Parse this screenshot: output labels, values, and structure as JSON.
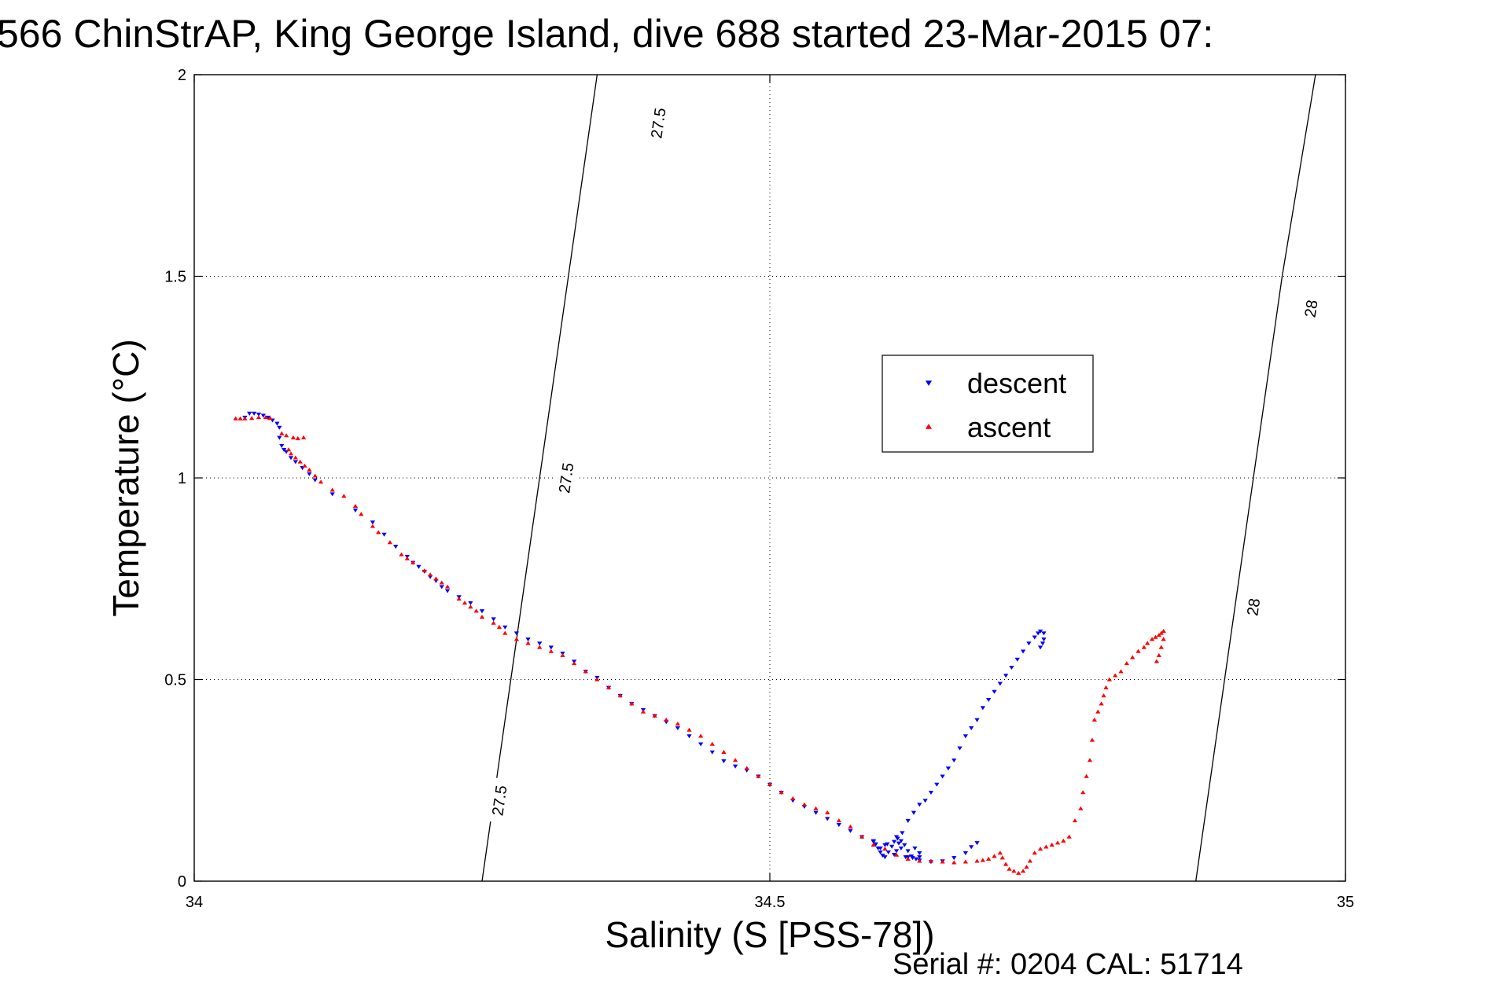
{
  "chart_data": {
    "type": "scatter",
    "title": "566 ChinStrAP, King George Island, dive 688 started 23-Mar-2015 07:",
    "xlabel": "Salinity (S [PSS-78])",
    "ylabel": "Temperature (°C)",
    "xlim": [
      34,
      35
    ],
    "ylim": [
      0,
      2
    ],
    "xticks": [
      34,
      34.5,
      35
    ],
    "xtick_labels": [
      "34",
      "34.5",
      "35"
    ],
    "yticks": [
      0,
      0.5,
      1,
      1.5,
      2
    ],
    "ytick_labels": [
      "0",
      "0.5",
      "1",
      "1.5",
      "2"
    ],
    "grid": true,
    "legend_position": "upper-right-inner",
    "footnote": "Serial #: 0204  CAL: 51714",
    "series": [
      {
        "name": "descent",
        "color": "#0000ff",
        "marker": "triangle-down",
        "points": [
          [
            34.044,
            1.15
          ],
          [
            34.048,
            1.16
          ],
          [
            34.052,
            1.16
          ],
          [
            34.056,
            1.158
          ],
          [
            34.06,
            1.155
          ],
          [
            34.064,
            1.15
          ],
          [
            34.068,
            1.143
          ],
          [
            34.072,
            1.135
          ],
          [
            34.074,
            1.125
          ],
          [
            34.074,
            1.1
          ],
          [
            34.076,
            1.08
          ],
          [
            34.078,
            1.07
          ],
          [
            34.08,
            1.065
          ],
          [
            34.084,
            1.05
          ],
          [
            34.088,
            1.04
          ],
          [
            34.094,
            1.025
          ],
          [
            34.1,
            1.01
          ],
          [
            34.105,
            0.995
          ],
          [
            34.12,
            0.96
          ],
          [
            34.14,
            0.92
          ],
          [
            34.155,
            0.89
          ],
          [
            34.165,
            0.86
          ],
          [
            34.175,
            0.83
          ],
          [
            34.185,
            0.805
          ],
          [
            34.19,
            0.79
          ],
          [
            34.195,
            0.78
          ],
          [
            34.2,
            0.768
          ],
          [
            34.205,
            0.755
          ],
          [
            34.21,
            0.745
          ],
          [
            34.215,
            0.73
          ],
          [
            34.22,
            0.72
          ],
          [
            34.23,
            0.705
          ],
          [
            34.24,
            0.69
          ],
          [
            34.25,
            0.67
          ],
          [
            34.26,
            0.65
          ],
          [
            34.27,
            0.63
          ],
          [
            34.28,
            0.615
          ],
          [
            34.29,
            0.6
          ],
          [
            34.3,
            0.59
          ],
          [
            34.31,
            0.58
          ],
          [
            34.32,
            0.565
          ],
          [
            34.33,
            0.545
          ],
          [
            34.34,
            0.52
          ],
          [
            34.35,
            0.505
          ],
          [
            34.36,
            0.48
          ],
          [
            34.37,
            0.46
          ],
          [
            34.38,
            0.44
          ],
          [
            34.39,
            0.425
          ],
          [
            34.4,
            0.41
          ],
          [
            34.41,
            0.395
          ],
          [
            34.42,
            0.38
          ],
          [
            34.43,
            0.36
          ],
          [
            34.44,
            0.34
          ],
          [
            34.45,
            0.32
          ],
          [
            34.46,
            0.298
          ],
          [
            34.47,
            0.285
          ],
          [
            34.48,
            0.275
          ],
          [
            34.49,
            0.26
          ],
          [
            34.5,
            0.24
          ],
          [
            34.51,
            0.22
          ],
          [
            34.52,
            0.2
          ],
          [
            34.53,
            0.185
          ],
          [
            34.54,
            0.17
          ],
          [
            34.55,
            0.155
          ],
          [
            34.56,
            0.14
          ],
          [
            34.57,
            0.125
          ],
          [
            34.58,
            0.11
          ],
          [
            34.59,
            0.1
          ],
          [
            34.6,
            0.09
          ],
          [
            34.61,
            0.075
          ],
          [
            34.62,
            0.06
          ],
          [
            34.63,
            0.052
          ],
          [
            34.64,
            0.048
          ],
          [
            34.65,
            0.05
          ],
          [
            34.66,
            0.058
          ],
          [
            34.67,
            0.07
          ],
          [
            34.675,
            0.085
          ],
          [
            34.68,
            0.095
          ],
          [
            34.59,
            0.098
          ],
          [
            34.592,
            0.092
          ],
          [
            34.594,
            0.082
          ],
          [
            34.596,
            0.072
          ],
          [
            34.598,
            0.064
          ],
          [
            34.6,
            0.06
          ],
          [
            34.603,
            0.072
          ],
          [
            34.606,
            0.086
          ],
          [
            34.608,
            0.098
          ],
          [
            34.611,
            0.106
          ],
          [
            34.614,
            0.1
          ],
          [
            34.617,
            0.09
          ],
          [
            34.62,
            0.075
          ],
          [
            34.623,
            0.062
          ],
          [
            34.627,
            0.055
          ],
          [
            34.63,
            0.07
          ],
          [
            34.612,
            0.094
          ],
          [
            34.602,
            0.092
          ],
          [
            34.596,
            0.082
          ],
          [
            34.614,
            0.082
          ],
          [
            34.618,
            0.06
          ],
          [
            34.624,
            0.058
          ],
          [
            34.608,
            0.066
          ],
          [
            34.63,
            0.06
          ],
          [
            34.626,
            0.082
          ],
          [
            34.61,
            0.11
          ],
          [
            34.615,
            0.12
          ],
          [
            34.62,
            0.15
          ],
          [
            34.625,
            0.17
          ],
          [
            34.63,
            0.19
          ],
          [
            34.635,
            0.2
          ],
          [
            34.64,
            0.22
          ],
          [
            34.645,
            0.24
          ],
          [
            34.65,
            0.26
          ],
          [
            34.655,
            0.28
          ],
          [
            34.66,
            0.3
          ],
          [
            34.665,
            0.33
          ],
          [
            34.67,
            0.36
          ],
          [
            34.675,
            0.38
          ],
          [
            34.68,
            0.4
          ],
          [
            34.685,
            0.43
          ],
          [
            34.69,
            0.45
          ],
          [
            34.695,
            0.47
          ],
          [
            34.7,
            0.49
          ],
          [
            34.705,
            0.51
          ],
          [
            34.71,
            0.53
          ],
          [
            34.715,
            0.55
          ],
          [
            34.72,
            0.57
          ],
          [
            34.725,
            0.59
          ],
          [
            34.73,
            0.605
          ],
          [
            34.733,
            0.615
          ],
          [
            34.735,
            0.62
          ],
          [
            34.738,
            0.615
          ],
          [
            34.738,
            0.6
          ],
          [
            34.737,
            0.59
          ],
          [
            34.735,
            0.58
          ]
        ]
      },
      {
        "name": "ascent",
        "color": "#ff0000",
        "marker": "triangle-up",
        "points": [
          [
            34.036,
            1.147
          ],
          [
            34.04,
            1.147
          ],
          [
            34.044,
            1.147
          ],
          [
            34.05,
            1.148
          ],
          [
            34.056,
            1.15
          ],
          [
            34.062,
            1.15
          ],
          [
            34.066,
            1.148
          ],
          [
            34.076,
            1.11
          ],
          [
            34.08,
            1.105
          ],
          [
            34.086,
            1.1
          ],
          [
            34.09,
            1.098
          ],
          [
            34.095,
            1.1
          ],
          [
            34.082,
            1.07
          ],
          [
            34.084,
            1.06
          ],
          [
            34.088,
            1.05
          ],
          [
            34.092,
            1.04
          ],
          [
            34.096,
            1.03
          ],
          [
            34.1,
            1.02
          ],
          [
            34.105,
            1.005
          ],
          [
            34.11,
            0.99
          ],
          [
            34.12,
            0.97
          ],
          [
            34.13,
            0.955
          ],
          [
            34.14,
            0.93
          ],
          [
            34.145,
            0.91
          ],
          [
            34.155,
            0.88
          ],
          [
            34.16,
            0.865
          ],
          [
            34.17,
            0.84
          ],
          [
            34.18,
            0.81
          ],
          [
            34.185,
            0.8
          ],
          [
            34.19,
            0.79
          ],
          [
            34.2,
            0.77
          ],
          [
            34.205,
            0.76
          ],
          [
            34.21,
            0.75
          ],
          [
            34.215,
            0.74
          ],
          [
            34.22,
            0.73
          ],
          [
            34.23,
            0.7
          ],
          [
            34.235,
            0.69
          ],
          [
            34.24,
            0.68
          ],
          [
            34.245,
            0.67
          ],
          [
            34.25,
            0.655
          ],
          [
            34.26,
            0.64
          ],
          [
            34.265,
            0.63
          ],
          [
            34.27,
            0.615
          ],
          [
            34.28,
            0.6
          ],
          [
            34.29,
            0.59
          ],
          [
            34.3,
            0.58
          ],
          [
            34.31,
            0.57
          ],
          [
            34.32,
            0.56
          ],
          [
            34.33,
            0.54
          ],
          [
            34.34,
            0.52
          ],
          [
            34.35,
            0.5
          ],
          [
            34.36,
            0.48
          ],
          [
            34.37,
            0.46
          ],
          [
            34.38,
            0.44
          ],
          [
            34.39,
            0.42
          ],
          [
            34.4,
            0.41
          ],
          [
            34.41,
            0.4
          ],
          [
            34.42,
            0.39
          ],
          [
            34.43,
            0.375
          ],
          [
            34.44,
            0.36
          ],
          [
            34.45,
            0.34
          ],
          [
            34.46,
            0.32
          ],
          [
            34.47,
            0.3
          ],
          [
            34.48,
            0.28
          ],
          [
            34.49,
            0.26
          ],
          [
            34.5,
            0.24
          ],
          [
            34.51,
            0.22
          ],
          [
            34.52,
            0.205
          ],
          [
            34.53,
            0.19
          ],
          [
            34.54,
            0.18
          ],
          [
            34.55,
            0.17
          ],
          [
            34.56,
            0.15
          ],
          [
            34.57,
            0.135
          ],
          [
            34.58,
            0.11
          ],
          [
            34.59,
            0.09
          ],
          [
            34.6,
            0.08
          ],
          [
            34.61,
            0.065
          ],
          [
            34.62,
            0.055
          ],
          [
            34.63,
            0.05
          ],
          [
            34.64,
            0.05
          ],
          [
            34.65,
            0.048
          ],
          [
            34.66,
            0.046
          ],
          [
            34.67,
            0.048
          ],
          [
            34.68,
            0.05
          ],
          [
            34.685,
            0.052
          ],
          [
            34.69,
            0.055
          ],
          [
            34.695,
            0.062
          ],
          [
            34.7,
            0.07
          ],
          [
            34.702,
            0.058
          ],
          [
            34.705,
            0.042
          ],
          [
            34.708,
            0.03
          ],
          [
            34.712,
            0.025
          ],
          [
            34.716,
            0.02
          ],
          [
            34.72,
            0.025
          ],
          [
            34.723,
            0.035
          ],
          [
            34.726,
            0.05
          ],
          [
            34.73,
            0.07
          ],
          [
            34.735,
            0.08
          ],
          [
            34.74,
            0.085
          ],
          [
            34.745,
            0.09
          ],
          [
            34.75,
            0.095
          ],
          [
            34.755,
            0.1
          ],
          [
            34.76,
            0.11
          ],
          [
            34.765,
            0.15
          ],
          [
            34.77,
            0.18
          ],
          [
            34.772,
            0.22
          ],
          [
            34.775,
            0.26
          ],
          [
            34.778,
            0.3
          ],
          [
            34.78,
            0.35
          ],
          [
            34.782,
            0.4
          ],
          [
            34.785,
            0.42
          ],
          [
            34.788,
            0.44
          ],
          [
            34.79,
            0.46
          ],
          [
            34.792,
            0.48
          ],
          [
            34.795,
            0.5
          ],
          [
            34.8,
            0.51
          ],
          [
            34.805,
            0.52
          ],
          [
            34.81,
            0.54
          ],
          [
            34.815,
            0.555
          ],
          [
            34.82,
            0.57
          ],
          [
            34.825,
            0.58
          ],
          [
            34.828,
            0.59
          ],
          [
            34.832,
            0.6
          ],
          [
            34.835,
            0.605
          ],
          [
            34.838,
            0.61
          ],
          [
            34.84,
            0.615
          ],
          [
            34.842,
            0.62
          ],
          [
            34.842,
            0.6
          ],
          [
            34.84,
            0.58
          ],
          [
            34.838,
            0.56
          ],
          [
            34.836,
            0.545
          ]
        ]
      }
    ],
    "contours": [
      {
        "label": "27.5",
        "points": [
          [
            34.25,
            0.0
          ],
          [
            34.275,
            0.5
          ],
          [
            34.3,
            1.0
          ],
          [
            34.325,
            1.5
          ],
          [
            34.35,
            2.0
          ]
        ],
        "label_positions": [
          [
            34.265,
            0.2
          ],
          [
            34.323,
            1.0
          ],
          [
            34.403,
            1.88
          ]
        ]
      },
      {
        "label": "28",
        "points": [
          [
            34.87,
            0.0
          ],
          [
            34.895,
            0.5
          ],
          [
            34.92,
            1.0
          ],
          [
            34.945,
            1.5
          ],
          [
            34.974,
            2.0
          ]
        ],
        "label_positions": [
          [
            34.92,
            0.68
          ],
          [
            34.97,
            1.42
          ]
        ]
      }
    ]
  }
}
